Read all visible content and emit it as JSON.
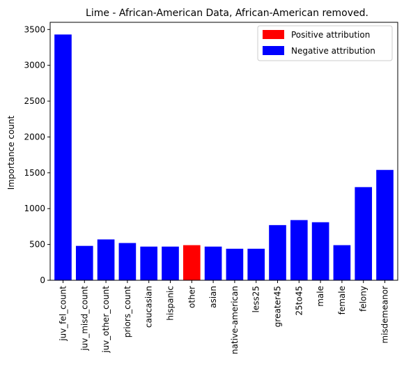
{
  "chart_data": {
    "type": "bar",
    "title": "Lime - African-American Data, African-American removed.",
    "xlabel": "",
    "ylabel": "Importance count",
    "ylim": [
      0,
      3600
    ],
    "yticks": [
      0,
      500,
      1000,
      1500,
      2000,
      2500,
      3000,
      3500
    ],
    "grid": false,
    "legend_position": "top-right",
    "legend": [
      {
        "label": "Positive attribution",
        "color": "#ff0000"
      },
      {
        "label": "Negative attribution",
        "color": "#0000ff"
      }
    ],
    "categories": [
      "juv_fel_count",
      "juv_misd_count",
      "juv_other_count",
      "priors_count",
      "caucasian",
      "hispanic",
      "other",
      "asian",
      "native-american",
      "less25",
      "greater45",
      "25to45",
      "male",
      "female",
      "felony",
      "misdemeanor"
    ],
    "values": [
      3430,
      480,
      570,
      520,
      470,
      470,
      490,
      470,
      440,
      440,
      770,
      840,
      810,
      490,
      1300,
      1540
    ],
    "attribution": [
      "negative",
      "negative",
      "negative",
      "negative",
      "negative",
      "negative",
      "positive",
      "negative",
      "negative",
      "negative",
      "negative",
      "negative",
      "negative",
      "negative",
      "negative",
      "negative"
    ],
    "colors": {
      "positive": "#ff0000",
      "negative": "#0000ff"
    }
  }
}
